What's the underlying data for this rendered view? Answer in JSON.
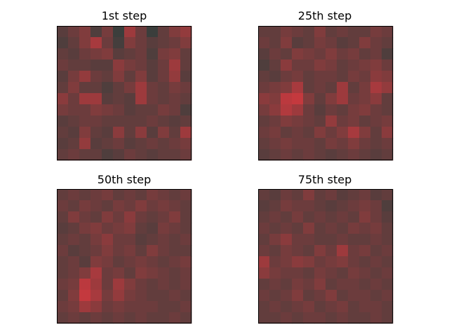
{
  "figure": {
    "background": "#ffffff",
    "frame_color": "#000000"
  },
  "chart_data": [
    {
      "type": "heatmap",
      "title": "1st step",
      "rows": 12,
      "cols": 12,
      "palette": {
        "dark": "#14403c",
        "red": "#d8383e"
      },
      "intensity": [
        [
          0.35,
          0.45,
          0.55,
          0.3,
          0.5,
          0.2,
          0.7,
          0.45,
          0.2,
          0.4,
          0.55,
          0.65
        ],
        [
          0.3,
          0.4,
          0.55,
          0.75,
          0.45,
          0.25,
          0.55,
          0.45,
          0.35,
          0.4,
          0.45,
          0.55
        ],
        [
          0.4,
          0.35,
          0.45,
          0.5,
          0.55,
          0.35,
          0.4,
          0.45,
          0.3,
          0.5,
          0.55,
          0.4
        ],
        [
          0.45,
          0.4,
          0.4,
          0.35,
          0.35,
          0.6,
          0.5,
          0.45,
          0.35,
          0.45,
          0.7,
          0.4
        ],
        [
          0.35,
          0.5,
          0.65,
          0.45,
          0.4,
          0.55,
          0.4,
          0.55,
          0.35,
          0.45,
          0.65,
          0.35
        ],
        [
          0.4,
          0.55,
          0.4,
          0.4,
          0.3,
          0.4,
          0.5,
          0.7,
          0.45,
          0.4,
          0.5,
          0.45
        ],
        [
          0.6,
          0.45,
          0.7,
          0.7,
          0.35,
          0.4,
          0.35,
          0.7,
          0.45,
          0.4,
          0.45,
          0.4
        ],
        [
          0.5,
          0.45,
          0.45,
          0.55,
          0.5,
          0.45,
          0.35,
          0.4,
          0.4,
          0.5,
          0.45,
          0.3
        ],
        [
          0.35,
          0.4,
          0.45,
          0.45,
          0.4,
          0.4,
          0.4,
          0.4,
          0.45,
          0.4,
          0.35,
          0.4
        ],
        [
          0.4,
          0.35,
          0.55,
          0.4,
          0.35,
          0.6,
          0.4,
          0.6,
          0.35,
          0.55,
          0.4,
          0.7
        ],
        [
          0.35,
          0.4,
          0.65,
          0.35,
          0.4,
          0.45,
          0.35,
          0.4,
          0.45,
          0.4,
          0.45,
          0.5
        ],
        [
          0.4,
          0.45,
          0.4,
          0.4,
          0.3,
          0.35,
          0.45,
          0.4,
          0.35,
          0.4,
          0.4,
          0.45
        ]
      ]
    },
    {
      "type": "heatmap",
      "title": "25th step",
      "rows": 12,
      "cols": 12,
      "palette": {
        "dark": "#14403c",
        "red": "#d8383e"
      },
      "intensity": [
        [
          0.4,
          0.4,
          0.5,
          0.45,
          0.4,
          0.55,
          0.4,
          0.45,
          0.4,
          0.4,
          0.5,
          0.45
        ],
        [
          0.45,
          0.4,
          0.55,
          0.35,
          0.4,
          0.5,
          0.45,
          0.35,
          0.4,
          0.55,
          0.45,
          0.4
        ],
        [
          0.35,
          0.45,
          0.4,
          0.55,
          0.5,
          0.45,
          0.55,
          0.45,
          0.5,
          0.4,
          0.45,
          0.3
        ],
        [
          0.3,
          0.4,
          0.6,
          0.45,
          0.45,
          0.55,
          0.5,
          0.4,
          0.45,
          0.5,
          0.55,
          0.45
        ],
        [
          0.4,
          0.35,
          0.45,
          0.5,
          0.4,
          0.45,
          0.45,
          0.4,
          0.5,
          0.45,
          0.6,
          0.55
        ],
        [
          0.45,
          0.5,
          0.55,
          0.75,
          0.4,
          0.45,
          0.4,
          0.7,
          0.4,
          0.5,
          0.75,
          0.65
        ],
        [
          0.6,
          0.55,
          0.85,
          0.9,
          0.55,
          0.4,
          0.55,
          0.7,
          0.45,
          0.5,
          0.6,
          0.4
        ],
        [
          0.5,
          0.6,
          0.8,
          0.7,
          0.45,
          0.35,
          0.45,
          0.4,
          0.5,
          0.55,
          0.45,
          0.4
        ],
        [
          0.4,
          0.45,
          0.55,
          0.5,
          0.45,
          0.4,
          0.65,
          0.45,
          0.5,
          0.4,
          0.45,
          0.5
        ],
        [
          0.45,
          0.5,
          0.4,
          0.45,
          0.4,
          0.55,
          0.45,
          0.55,
          0.75,
          0.55,
          0.4,
          0.6
        ],
        [
          0.4,
          0.45,
          0.5,
          0.45,
          0.45,
          0.4,
          0.5,
          0.45,
          0.55,
          0.45,
          0.4,
          0.45
        ],
        [
          0.35,
          0.4,
          0.45,
          0.4,
          0.45,
          0.4,
          0.35,
          0.4,
          0.45,
          0.4,
          0.35,
          0.4
        ]
      ]
    },
    {
      "type": "heatmap",
      "title": "50th step",
      "rows": 12,
      "cols": 12,
      "palette": {
        "dark": "#14403c",
        "red": "#d8383e"
      },
      "intensity": [
        [
          0.4,
          0.45,
          0.4,
          0.45,
          0.5,
          0.4,
          0.45,
          0.4,
          0.5,
          0.45,
          0.4,
          0.45
        ],
        [
          0.45,
          0.4,
          0.5,
          0.45,
          0.4,
          0.5,
          0.45,
          0.55,
          0.45,
          0.5,
          0.45,
          0.4
        ],
        [
          0.4,
          0.55,
          0.45,
          0.4,
          0.55,
          0.45,
          0.6,
          0.45,
          0.4,
          0.45,
          0.55,
          0.4
        ],
        [
          0.35,
          0.4,
          0.5,
          0.55,
          0.45,
          0.5,
          0.55,
          0.4,
          0.35,
          0.5,
          0.45,
          0.4
        ],
        [
          0.4,
          0.45,
          0.4,
          0.5,
          0.6,
          0.45,
          0.45,
          0.35,
          0.4,
          0.45,
          0.4,
          0.45
        ],
        [
          0.45,
          0.35,
          0.4,
          0.45,
          0.55,
          0.45,
          0.5,
          0.4,
          0.55,
          0.45,
          0.4,
          0.4
        ],
        [
          0.4,
          0.45,
          0.35,
          0.55,
          0.5,
          0.4,
          0.45,
          0.5,
          0.45,
          0.4,
          0.45,
          0.5
        ],
        [
          0.4,
          0.45,
          0.55,
          0.75,
          0.45,
          0.5,
          0.4,
          0.55,
          0.5,
          0.45,
          0.4,
          0.45
        ],
        [
          0.45,
          0.5,
          0.85,
          0.7,
          0.45,
          0.7,
          0.55,
          0.45,
          0.4,
          0.45,
          0.4,
          0.45
        ],
        [
          0.4,
          0.55,
          0.9,
          0.75,
          0.5,
          0.65,
          0.5,
          0.45,
          0.4,
          0.4,
          0.45,
          0.4
        ],
        [
          0.45,
          0.5,
          0.7,
          0.6,
          0.45,
          0.5,
          0.45,
          0.45,
          0.45,
          0.4,
          0.4,
          0.45
        ],
        [
          0.4,
          0.45,
          0.4,
          0.45,
          0.4,
          0.45,
          0.4,
          0.45,
          0.4,
          0.4,
          0.45,
          0.4
        ]
      ]
    },
    {
      "type": "heatmap",
      "title": "75th step",
      "rows": 12,
      "cols": 12,
      "palette": {
        "dark": "#14403c",
        "red": "#d8383e"
      },
      "intensity": [
        [
          0.4,
          0.35,
          0.45,
          0.4,
          0.55,
          0.4,
          0.45,
          0.35,
          0.4,
          0.45,
          0.35,
          0.4
        ],
        [
          0.35,
          0.4,
          0.5,
          0.45,
          0.45,
          0.4,
          0.35,
          0.4,
          0.45,
          0.5,
          0.45,
          0.3
        ],
        [
          0.4,
          0.45,
          0.4,
          0.5,
          0.4,
          0.45,
          0.4,
          0.45,
          0.4,
          0.55,
          0.45,
          0.35
        ],
        [
          0.45,
          0.4,
          0.45,
          0.4,
          0.55,
          0.4,
          0.45,
          0.4,
          0.5,
          0.45,
          0.5,
          0.4
        ],
        [
          0.4,
          0.5,
          0.6,
          0.45,
          0.45,
          0.4,
          0.4,
          0.45,
          0.4,
          0.4,
          0.45,
          0.4
        ],
        [
          0.45,
          0.4,
          0.5,
          0.45,
          0.4,
          0.55,
          0.45,
          0.7,
          0.45,
          0.5,
          0.4,
          0.45
        ],
        [
          0.7,
          0.45,
          0.5,
          0.6,
          0.55,
          0.45,
          0.5,
          0.55,
          0.45,
          0.4,
          0.45,
          0.4
        ],
        [
          0.6,
          0.5,
          0.45,
          0.45,
          0.4,
          0.5,
          0.45,
          0.4,
          0.5,
          0.45,
          0.4,
          0.45
        ],
        [
          0.4,
          0.45,
          0.4,
          0.5,
          0.45,
          0.55,
          0.4,
          0.45,
          0.45,
          0.4,
          0.45,
          0.4
        ],
        [
          0.45,
          0.4,
          0.45,
          0.55,
          0.4,
          0.45,
          0.55,
          0.4,
          0.45,
          0.45,
          0.4,
          0.45
        ],
        [
          0.4,
          0.45,
          0.4,
          0.45,
          0.5,
          0.4,
          0.45,
          0.5,
          0.4,
          0.45,
          0.45,
          0.4
        ],
        [
          0.4,
          0.4,
          0.45,
          0.4,
          0.45,
          0.45,
          0.4,
          0.45,
          0.4,
          0.4,
          0.45,
          0.4
        ]
      ]
    }
  ]
}
